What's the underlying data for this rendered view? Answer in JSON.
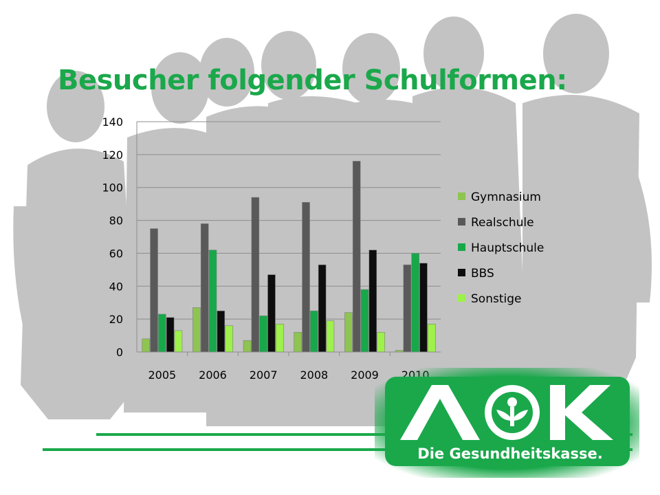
{
  "slide": {
    "title": "Besucher folgender Schulformen:"
  },
  "logo": {
    "mark": "AOK",
    "tagline": "Die Gesundheitskasse.",
    "color": "#1aa84b"
  },
  "chart_data": {
    "type": "bar",
    "title": "",
    "xlabel": "",
    "ylabel": "",
    "categories": [
      "2005",
      "2006",
      "2007",
      "2008",
      "2009",
      "2010"
    ],
    "ylim": [
      0,
      140
    ],
    "yticks": [
      0,
      20,
      40,
      60,
      80,
      100,
      120,
      140
    ],
    "grid": true,
    "legend_position": "right",
    "series": [
      {
        "name": "Gymnasium",
        "color": "#8ec450",
        "values": [
          8,
          27,
          7,
          12,
          24,
          1
        ]
      },
      {
        "name": "Realschule",
        "color": "#595959",
        "values": [
          75,
          78,
          94,
          91,
          116,
          53
        ]
      },
      {
        "name": "Hauptschule",
        "color": "#17a84a",
        "values": [
          23,
          62,
          22,
          25,
          38,
          60
        ]
      },
      {
        "name": "BBS",
        "color": "#0d0d0d",
        "values": [
          21,
          25,
          47,
          53,
          62,
          54
        ]
      },
      {
        "name": "Sonstige",
        "color": "#9ef04a",
        "values": [
          13,
          16,
          17,
          19,
          12,
          17
        ]
      }
    ]
  }
}
